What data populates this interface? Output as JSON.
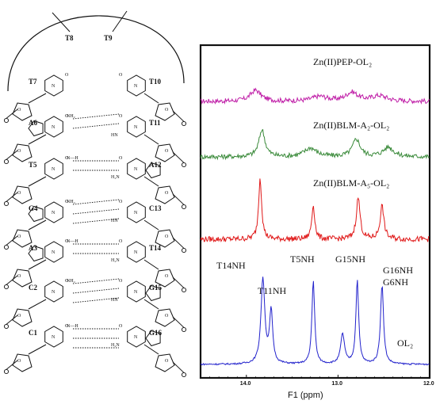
{
  "structure": {
    "loop_labels": [
      "T8",
      "T9"
    ],
    "left_strand": [
      "T7",
      "A6",
      "T5",
      "G4",
      "A3",
      "C2",
      "C1"
    ],
    "right_strand": [
      "T10",
      "T11",
      "A12",
      "C13",
      "T14",
      "G15",
      "G16"
    ],
    "hbond_atoms": {
      "nh2": "NH₂",
      "h2n": "H₂N",
      "o": "O",
      "n": "N",
      "nh": "NH",
      "hn": "HN",
      "n_h": "N—H",
      "h_n": "H—N"
    }
  },
  "chart_data": {
    "type": "line",
    "xlabel": "F1 (ppm)",
    "xlim": [
      14.5,
      12.0
    ],
    "xticks": [
      "14.0",
      "13.0",
      "12.0"
    ],
    "series": [
      {
        "name": "Zn(II)PEP-OL₂",
        "color": "#c020a8",
        "peaks": [
          {
            "ppm": 13.9,
            "height": 14,
            "width": 0.07
          },
          {
            "ppm": 13.2,
            "height": 6,
            "width": 0.1
          },
          {
            "ppm": 12.85,
            "height": 11,
            "width": 0.08
          },
          {
            "ppm": 12.55,
            "height": 7,
            "width": 0.1
          }
        ]
      },
      {
        "name": "Zn(II)BLM-A₂-OL₂",
        "color": "#3a8a3a",
        "peaks": [
          {
            "ppm": 13.83,
            "height": 34,
            "width": 0.04
          },
          {
            "ppm": 13.3,
            "height": 11,
            "width": 0.08
          },
          {
            "ppm": 12.8,
            "height": 22,
            "width": 0.05
          },
          {
            "ppm": 12.45,
            "height": 12,
            "width": 0.07
          }
        ]
      },
      {
        "name": "Zn(II)BLM-A₅-OL₂",
        "color": "#e01818",
        "peaks": [
          {
            "ppm": 13.85,
            "height": 78,
            "width": 0.02
          },
          {
            "ppm": 13.27,
            "height": 43,
            "width": 0.02
          },
          {
            "ppm": 12.78,
            "height": 52,
            "width": 0.025
          },
          {
            "ppm": 12.52,
            "height": 42,
            "width": 0.025
          }
        ]
      },
      {
        "name": "OL₂",
        "color": "#2222cc",
        "peaks": [
          {
            "ppm": 13.82,
            "height": 108,
            "width": 0.025
          },
          {
            "ppm": 13.73,
            "height": 66,
            "width": 0.02
          },
          {
            "ppm": 13.27,
            "height": 106,
            "width": 0.018
          },
          {
            "ppm": 12.95,
            "height": 38,
            "width": 0.025
          },
          {
            "ppm": 12.79,
            "height": 106,
            "width": 0.018
          },
          {
            "ppm": 12.52,
            "height": 100,
            "width": 0.02
          }
        ]
      }
    ],
    "peak_labels": [
      {
        "text": "T14NH",
        "ppm": 13.82
      },
      {
        "text": "T11NH",
        "ppm": 13.73
      },
      {
        "text": "T5NH",
        "ppm": 13.27
      },
      {
        "text": "G15NH",
        "ppm": 12.79
      },
      {
        "text": "G16NH",
        "ppm": 12.52
      },
      {
        "text": "G6NH",
        "ppm": 12.52
      }
    ]
  }
}
